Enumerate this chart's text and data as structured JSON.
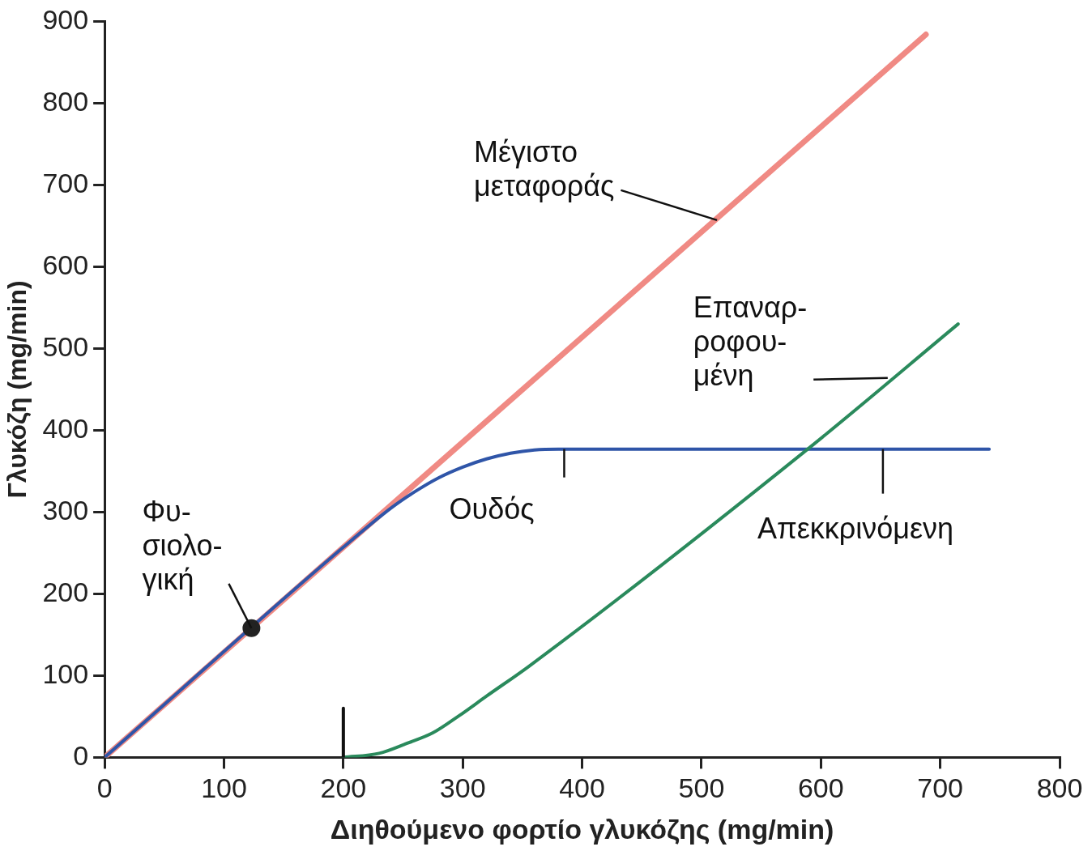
{
  "chart_data": {
    "type": "line",
    "xlabel": "Διηθούμενο φορτίο γλυκόζης (mg/min)",
    "ylabel": "Γλυκόζη (mg/min)",
    "xlim": [
      0,
      800
    ],
    "xticks": [
      0,
      100,
      200,
      300,
      400,
      500,
      600,
      700,
      800
    ],
    "ylim": [
      0,
      900
    ],
    "yticks": [
      0,
      100,
      200,
      300,
      400,
      500,
      600,
      700,
      800,
      900
    ],
    "grid": false,
    "legend": false,
    "marker": "none",
    "line_style": "solid",
    "series": [
      {
        "color": "#f08a84",
        "x": [
          0,
          688
        ],
        "values": [
          0,
          884
        ]
      },
      {
        "color": "#2f55a8",
        "x": [
          0,
          200,
          240,
          260,
          280,
          300,
          320,
          340,
          360,
          380,
          741
        ],
        "values": [
          0,
          257,
          305,
          325,
          342,
          355,
          365,
          372,
          376,
          377,
          377
        ]
      },
      {
        "color": "#2a8a5c",
        "x": [
          200,
          230,
          253,
          275,
          297,
          320,
          356,
          589,
          715
        ],
        "values": [
          0,
          5,
          17,
          30,
          51,
          75,
          112,
          377,
          530
        ]
      },
      {
        "type": "scatter",
        "marker": "circle",
        "color": "#222222",
        "x": [
          123
        ],
        "values": [
          158
        ]
      },
      {
        "color": "#111111",
        "x": [
          200,
          200
        ],
        "values": [
          0,
          60
        ]
      }
    ],
    "annotations": [
      {
        "text": "Μέγιστο\nμεταφοράς",
        "x": 513,
        "y": 657
      },
      {
        "text": "Επαναρ-\nροφου-\nμένη",
        "x": 656,
        "y": 464
      },
      {
        "text": "Φυ-\nσιολο-\nγική",
        "x": 123,
        "y": 158
      },
      {
        "text": "Ουδός",
        "x": 385,
        "y": 377
      },
      {
        "text": "Απεκκρινόμενη",
        "x": 652,
        "y": 377
      }
    ]
  }
}
